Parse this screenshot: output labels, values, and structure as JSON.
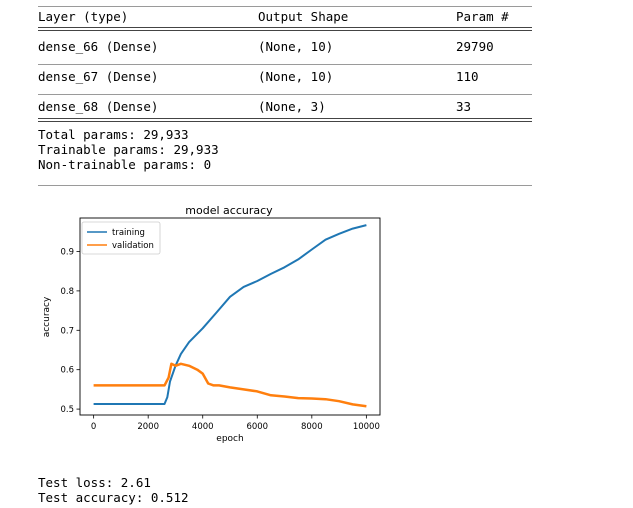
{
  "summary": {
    "headers": {
      "layer": "Layer (type)",
      "shape": "Output Shape",
      "params": "Param #"
    },
    "rows": [
      {
        "layer": "dense_66 (Dense)",
        "shape": "(None, 10)",
        "params": "29790"
      },
      {
        "layer": "dense_67 (Dense)",
        "shape": "(None, 10)",
        "params": "110"
      },
      {
        "layer": "dense_68 (Dense)",
        "shape": "(None, 3)",
        "params": "33"
      }
    ],
    "total": "Total params: 29,933",
    "trainable": "Trainable params: 29,933",
    "non_trainable": "Non-trainable params: 0"
  },
  "chart_data": {
    "type": "line",
    "title": "model accuracy",
    "xlabel": "epoch",
    "ylabel": "accuracy",
    "xlim": [
      -500,
      10500
    ],
    "ylim": [
      0.485,
      0.985
    ],
    "xticks": [
      0,
      2000,
      4000,
      6000,
      8000,
      10000
    ],
    "yticks": [
      0.5,
      0.6,
      0.7,
      0.8,
      0.9
    ],
    "legend_position": "top-left",
    "series": [
      {
        "name": "training",
        "color": "#1f77b4",
        "x": [
          0,
          2000,
          2600,
          2700,
          2800,
          3000,
          3200,
          3500,
          4000,
          4500,
          5000,
          5500,
          6000,
          6500,
          7000,
          7500,
          8000,
          8500,
          9000,
          9500,
          10000
        ],
        "y": [
          0.513,
          0.513,
          0.513,
          0.53,
          0.57,
          0.61,
          0.64,
          0.67,
          0.705,
          0.745,
          0.785,
          0.81,
          0.825,
          0.843,
          0.86,
          0.88,
          0.905,
          0.93,
          0.945,
          0.958,
          0.967
        ]
      },
      {
        "name": "validation",
        "color": "#ff7f0e",
        "x": [
          0,
          2000,
          2600,
          2750,
          2850,
          3000,
          3200,
          3500,
          3800,
          4000,
          4200,
          4400,
          4600,
          5000,
          5500,
          6000,
          6500,
          7000,
          7500,
          8000,
          8500,
          9000,
          9500,
          10000
        ],
        "y": [
          0.56,
          0.56,
          0.56,
          0.58,
          0.615,
          0.61,
          0.615,
          0.61,
          0.6,
          0.59,
          0.565,
          0.56,
          0.56,
          0.555,
          0.55,
          0.545,
          0.535,
          0.532,
          0.528,
          0.527,
          0.525,
          0.52,
          0.512,
          0.507
        ]
      }
    ]
  },
  "results": {
    "test_loss": "Test loss: 2.61",
    "test_accuracy": "Test accuracy: 0.512"
  }
}
